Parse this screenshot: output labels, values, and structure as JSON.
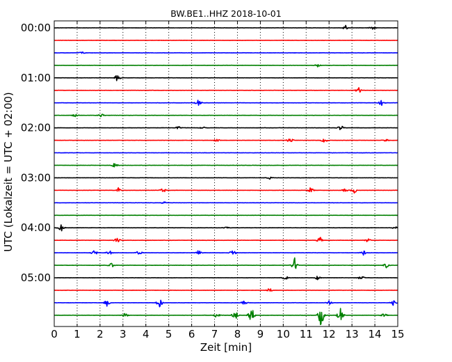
{
  "chart_data": {
    "type": "line",
    "title": "BW.BE1..HHZ 2018-10-01",
    "xlabel": "Zeit  [min]",
    "ylabel": "UTC (Lokalzeit = UTC + 02:00)",
    "xlim": [
      0,
      15
    ],
    "x_ticks": [
      "0",
      "1",
      "2",
      "3",
      "4",
      "5",
      "6",
      "7",
      "8",
      "9",
      "10",
      "11",
      "12",
      "13",
      "14",
      "15"
    ],
    "y_ticks": [
      "00:00",
      "01:00",
      "02:00",
      "03:00",
      "04:00",
      "05:00"
    ],
    "trace_minutes": 15,
    "vertical_grid": "dotted",
    "colors": [
      "#000000",
      "#ff0000",
      "#0000ff",
      "#008000"
    ],
    "traces": [
      {
        "start": "00:00",
        "color": "#000000",
        "events": [
          [
            12.7,
            0.35
          ],
          [
            13.9,
            0.25
          ]
        ]
      },
      {
        "start": "00:15",
        "color": "#ff0000",
        "events": []
      },
      {
        "start": "00:30",
        "color": "#0000ff",
        "events": [
          [
            1.2,
            0.15
          ]
        ]
      },
      {
        "start": "00:45",
        "color": "#008000",
        "events": [
          [
            11.5,
            0.2
          ]
        ]
      },
      {
        "start": "01:00",
        "color": "#000000",
        "events": [
          [
            2.75,
            0.4
          ]
        ]
      },
      {
        "start": "01:15",
        "color": "#ff0000",
        "events": [
          [
            13.3,
            0.35
          ]
        ]
      },
      {
        "start": "01:30",
        "color": "#0000ff",
        "events": [
          [
            6.3,
            0.4
          ],
          [
            14.3,
            0.35
          ]
        ]
      },
      {
        "start": "01:45",
        "color": "#008000",
        "events": [
          [
            0.9,
            0.25
          ],
          [
            2.05,
            0.2
          ]
        ]
      },
      {
        "start": "02:00",
        "color": "#000000",
        "events": [
          [
            5.4,
            0.2
          ],
          [
            6.5,
            0.15
          ],
          [
            12.5,
            0.35
          ]
        ]
      },
      {
        "start": "02:15",
        "color": "#ff0000",
        "events": [
          [
            7.1,
            0.2
          ],
          [
            10.3,
            0.35
          ],
          [
            11.8,
            0.35
          ],
          [
            14.5,
            0.2
          ]
        ]
      },
      {
        "start": "02:30",
        "color": "#0000ff",
        "events": []
      },
      {
        "start": "02:45",
        "color": "#008000",
        "events": [
          [
            2.65,
            0.4
          ]
        ]
      },
      {
        "start": "03:00",
        "color": "#000000",
        "events": [
          [
            9.4,
            0.15
          ]
        ]
      },
      {
        "start": "03:15",
        "color": "#ff0000",
        "events": [
          [
            2.8,
            0.3
          ],
          [
            4.75,
            0.35
          ],
          [
            11.2,
            0.35
          ],
          [
            12.7,
            0.2
          ],
          [
            13.1,
            0.35
          ]
        ]
      },
      {
        "start": "03:30",
        "color": "#0000ff",
        "events": [
          [
            4.8,
            0.15
          ]
        ]
      },
      {
        "start": "03:45",
        "color": "#008000",
        "events": []
      },
      {
        "start": "04:00",
        "color": "#000000",
        "events": [
          [
            0.3,
            0.45
          ],
          [
            7.5,
            0.15
          ],
          [
            14.9,
            0.3
          ]
        ]
      },
      {
        "start": "04:15",
        "color": "#ff0000",
        "events": [
          [
            2.75,
            0.3
          ],
          [
            11.6,
            0.45
          ],
          [
            13.7,
            0.25
          ]
        ]
      },
      {
        "start": "04:30",
        "color": "#0000ff",
        "events": [
          [
            1.75,
            0.35
          ],
          [
            2.4,
            0.3
          ],
          [
            3.7,
            0.25
          ],
          [
            6.3,
            0.3
          ],
          [
            7.8,
            0.4
          ],
          [
            13.5,
            0.3
          ]
        ]
      },
      {
        "start": "04:45",
        "color": "#008000",
        "events": [
          [
            2.5,
            0.3
          ],
          [
            10.5,
            0.9
          ],
          [
            14.5,
            0.3
          ]
        ]
      },
      {
        "start": "05:00",
        "color": "#000000",
        "events": [
          [
            10.1,
            0.25
          ],
          [
            11.5,
            0.25
          ],
          [
            13.4,
            0.3
          ]
        ]
      },
      {
        "start": "05:15",
        "color": "#ff0000",
        "events": [
          [
            9.4,
            0.25
          ]
        ]
      },
      {
        "start": "05:30",
        "color": "#0000ff",
        "events": [
          [
            2.3,
            0.4
          ],
          [
            4.6,
            0.6
          ],
          [
            8.3,
            0.25
          ],
          [
            12.0,
            0.3
          ],
          [
            14.8,
            0.3
          ]
        ]
      },
      {
        "start": "05:45",
        "color": "#008000",
        "events": [
          [
            3.1,
            0.25
          ],
          [
            7.1,
            0.4
          ],
          [
            7.9,
            0.6
          ],
          [
            8.6,
            1.2
          ],
          [
            11.65,
            1.4
          ],
          [
            12.5,
            0.9
          ],
          [
            14.4,
            0.25
          ]
        ]
      }
    ]
  }
}
